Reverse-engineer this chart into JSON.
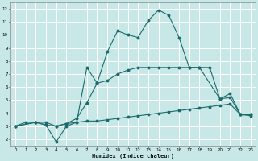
{
  "xlabel": "Humidex (Indice chaleur)",
  "background_color": "#c8e8e8",
  "grid_color": "#b0d8d8",
  "line_color": "#1a6b6b",
  "xlim": [
    -0.5,
    23.5
  ],
  "ylim": [
    1.5,
    12.5
  ],
  "xticks": [
    0,
    1,
    2,
    3,
    4,
    5,
    6,
    7,
    8,
    9,
    10,
    11,
    12,
    13,
    14,
    15,
    16,
    17,
    18,
    19,
    20,
    21,
    22,
    23
  ],
  "yticks": [
    2,
    3,
    4,
    5,
    6,
    7,
    8,
    9,
    10,
    11,
    12
  ],
  "series1_x": [
    0,
    1,
    2,
    3,
    4,
    5,
    6,
    7,
    8,
    9,
    10,
    11,
    12,
    13,
    14,
    15,
    16,
    17,
    18,
    19,
    20,
    21,
    22,
    23
  ],
  "series1_y": [
    3.0,
    3.3,
    3.3,
    3.3,
    3.0,
    3.2,
    3.3,
    3.4,
    3.4,
    3.5,
    3.6,
    3.7,
    3.8,
    3.9,
    4.0,
    4.1,
    4.2,
    4.3,
    4.4,
    4.5,
    4.6,
    4.7,
    3.9,
    3.9
  ],
  "series2_x": [
    0,
    2,
    3,
    4,
    5,
    6,
    7,
    8,
    9,
    10,
    11,
    12,
    13,
    14,
    15,
    16,
    17,
    18,
    19,
    20,
    21,
    22,
    23
  ],
  "series2_y": [
    3.0,
    3.3,
    3.1,
    3.0,
    3.2,
    3.6,
    4.8,
    6.3,
    6.5,
    7.0,
    7.3,
    7.5,
    7.5,
    7.5,
    7.5,
    7.5,
    7.5,
    7.5,
    7.5,
    5.1,
    5.2,
    3.9,
    3.8
  ],
  "series3_x": [
    0,
    2,
    3,
    4,
    5,
    6,
    7,
    8,
    9,
    10,
    11,
    12,
    13,
    14,
    15,
    16,
    17,
    18,
    20,
    21,
    22,
    23
  ],
  "series3_y": [
    3.0,
    3.3,
    3.1,
    1.8,
    3.0,
    3.3,
    7.5,
    6.3,
    8.7,
    10.3,
    10.0,
    9.8,
    11.1,
    11.9,
    11.5,
    9.8,
    7.5,
    7.5,
    5.1,
    5.5,
    3.9,
    3.9
  ]
}
